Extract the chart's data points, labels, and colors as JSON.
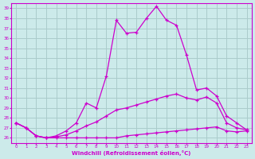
{
  "xlabel": "Windchill (Refroidissement éolien,°C)",
  "background_color": "#cceaea",
  "grid_color": "#aacccc",
  "line_color": "#cc00cc",
  "xlim": [
    -0.5,
    23.5
  ],
  "ylim": [
    25.5,
    39.5
  ],
  "yticks": [
    26,
    27,
    28,
    29,
    30,
    31,
    32,
    33,
    34,
    35,
    36,
    37,
    38,
    39
  ],
  "xticks": [
    0,
    1,
    2,
    3,
    4,
    5,
    6,
    7,
    8,
    9,
    10,
    11,
    12,
    13,
    14,
    15,
    16,
    17,
    18,
    19,
    20,
    21,
    22,
    23
  ],
  "line1_x": [
    0,
    1,
    2,
    3,
    4,
    5,
    6,
    7,
    8,
    9,
    10,
    11,
    12,
    13,
    14,
    15,
    16,
    17,
    18,
    19,
    20,
    21,
    22,
    23
  ],
  "line1_y": [
    27.5,
    27.0,
    26.2,
    26.0,
    26.0,
    26.0,
    26.0,
    26.0,
    26.0,
    26.0,
    26.0,
    26.2,
    26.3,
    26.4,
    26.5,
    26.6,
    26.7,
    26.8,
    26.9,
    27.0,
    27.1,
    26.7,
    26.6,
    26.7
  ],
  "line2_x": [
    0,
    1,
    2,
    3,
    4,
    5,
    6,
    7,
    8,
    9,
    10,
    11,
    12,
    13,
    14,
    15,
    16,
    17,
    18,
    19,
    20,
    21,
    22,
    23
  ],
  "line2_y": [
    27.5,
    27.0,
    26.2,
    26.0,
    26.1,
    26.3,
    26.7,
    27.2,
    27.6,
    28.2,
    28.8,
    29.0,
    29.3,
    29.6,
    29.9,
    30.2,
    30.4,
    30.0,
    29.8,
    30.1,
    29.5,
    27.5,
    27.0,
    26.8
  ],
  "line3_x": [
    0,
    1,
    2,
    3,
    4,
    5,
    6,
    7,
    8,
    9,
    10,
    11,
    12,
    13,
    14,
    15,
    16,
    17,
    18,
    19,
    20,
    21,
    22,
    23
  ],
  "line3_y": [
    27.5,
    27.0,
    26.2,
    26.0,
    26.2,
    26.7,
    27.5,
    29.5,
    29.0,
    32.2,
    37.8,
    36.5,
    36.6,
    38.0,
    39.2,
    37.8,
    37.3,
    34.3,
    30.8,
    31.0,
    30.2,
    28.2,
    27.5,
    26.8
  ]
}
